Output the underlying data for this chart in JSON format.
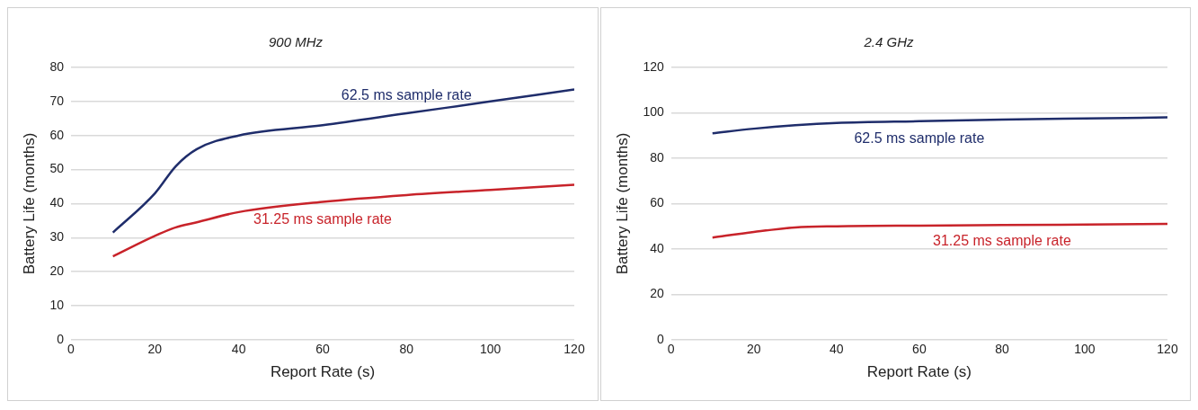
{
  "chart_data": [
    {
      "type": "line",
      "title": "900 MHz",
      "xlabel": "Report Rate (s)",
      "ylabel": "Battery Life (months)",
      "xlim": [
        0,
        120
      ],
      "xticks": [
        0,
        20,
        40,
        60,
        80,
        100,
        120
      ],
      "ylim": [
        0,
        80
      ],
      "yticks": [
        0,
        10,
        20,
        30,
        40,
        50,
        60,
        70,
        80
      ],
      "grid": "y",
      "legend": false,
      "marker": "none",
      "x": [
        10,
        20,
        25,
        30,
        40,
        60,
        80,
        100,
        120
      ],
      "series": [
        {
          "name": "62.5 ms sample rate",
          "color": "#1f2d6b",
          "values": [
            31.5,
            43,
            51,
            56,
            60,
            63,
            66.5,
            70,
            73.5
          ]
        },
        {
          "name": "31.25 ms sample rate",
          "color": "#c8232a",
          "values": [
            24.5,
            30.5,
            33,
            34.5,
            37.5,
            40.5,
            42.5,
            44,
            45.5
          ]
        }
      ]
    },
    {
      "type": "line",
      "title": "2.4 GHz",
      "xlabel": "Report Rate (s)",
      "ylabel": "Battery Life (months)",
      "xlim": [
        0,
        120
      ],
      "xticks": [
        0,
        20,
        40,
        60,
        80,
        100,
        120
      ],
      "ylim": [
        0,
        120
      ],
      "yticks": [
        0,
        20,
        40,
        60,
        80,
        100,
        120
      ],
      "grid": "y",
      "legend": false,
      "marker": "none",
      "x": [
        10,
        20,
        30,
        40,
        60,
        80,
        100,
        120
      ],
      "series": [
        {
          "name": "62.5 ms sample rate",
          "color": "#1f2d6b",
          "values": [
            91,
            93,
            94.5,
            95.5,
            96.3,
            97,
            97.5,
            98
          ]
        },
        {
          "name": "31.25 ms sample rate",
          "color": "#c8232a",
          "values": [
            45,
            47.5,
            49.5,
            50,
            50.3,
            50.5,
            50.7,
            51
          ]
        }
      ]
    }
  ]
}
